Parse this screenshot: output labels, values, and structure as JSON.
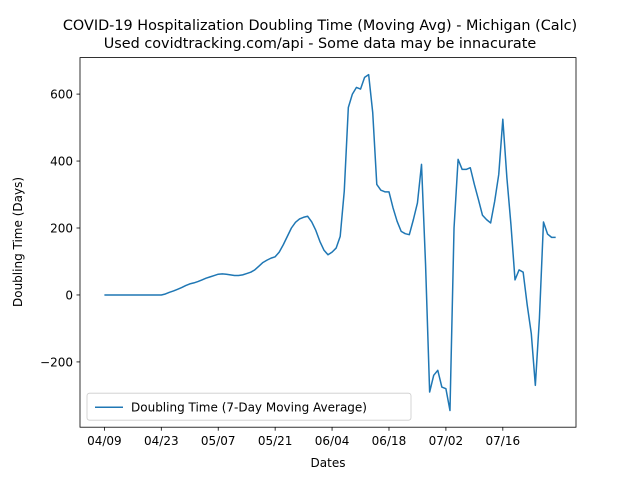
{
  "chart_data": {
    "type": "line",
    "title": "COVID-19 Hospitalization Doubling Time (Moving Avg) - Michigan (Calc)",
    "subtitle": "Used covidtracking.com/api - Some data may be innacurate",
    "x_label": "Dates",
    "y_label": "Doubling Time (Days)",
    "x": [
      "04/09",
      "04/10",
      "04/11",
      "04/12",
      "04/13",
      "04/14",
      "04/15",
      "04/16",
      "04/17",
      "04/18",
      "04/19",
      "04/20",
      "04/21",
      "04/22",
      "04/23",
      "04/24",
      "04/25",
      "04/26",
      "04/27",
      "04/28",
      "04/29",
      "04/30",
      "05/01",
      "05/02",
      "05/03",
      "05/04",
      "05/05",
      "05/06",
      "05/07",
      "05/08",
      "05/09",
      "05/10",
      "05/11",
      "05/12",
      "05/13",
      "05/14",
      "05/15",
      "05/16",
      "05/17",
      "05/18",
      "05/19",
      "05/20",
      "05/21",
      "05/22",
      "05/23",
      "05/24",
      "05/25",
      "05/26",
      "05/27",
      "05/28",
      "05/29",
      "05/30",
      "05/31",
      "06/01",
      "06/02",
      "06/03",
      "06/04",
      "06/05",
      "06/06",
      "06/07",
      "06/08",
      "06/09",
      "06/10",
      "06/11",
      "06/12",
      "06/13",
      "06/14",
      "06/15",
      "06/16",
      "06/17",
      "06/18",
      "06/19",
      "06/20",
      "06/21",
      "06/22",
      "06/23",
      "06/24",
      "06/25",
      "06/26",
      "06/27",
      "06/28",
      "06/29",
      "06/30",
      "07/01",
      "07/02",
      "07/03",
      "07/04",
      "07/05",
      "07/06",
      "07/07",
      "07/08",
      "07/09",
      "07/10",
      "07/11",
      "07/12",
      "07/13",
      "07/14",
      "07/15",
      "07/16",
      "07/17",
      "07/18",
      "07/19",
      "07/20",
      "07/21",
      "07/22",
      "07/23",
      "07/24",
      "07/25",
      "07/26",
      "07/27",
      "07/28",
      "07/29"
    ],
    "series": [
      {
        "name": "Doubling Time (7-Day Moving Average)",
        "color": "#1f77b4",
        "values": [
          0,
          0,
          0,
          0,
          0,
          0,
          0,
          0,
          0,
          0,
          0,
          0,
          0,
          0,
          0,
          3,
          8,
          12,
          17,
          22,
          28,
          33,
          36,
          40,
          45,
          50,
          54,
          58,
          62,
          63,
          62,
          60,
          58,
          58,
          60,
          64,
          68,
          75,
          86,
          97,
          104,
          110,
          114,
          128,
          150,
          175,
          200,
          217,
          227,
          232,
          235,
          218,
          193,
          160,
          134,
          120,
          128,
          140,
          175,
          310,
          560,
          600,
          620,
          615,
          650,
          658,
          545,
          330,
          313,
          308,
          308,
          260,
          220,
          190,
          183,
          180,
          225,
          275,
          390,
          90,
          -290,
          -240,
          -225,
          -275,
          -280,
          -345,
          200,
          405,
          375,
          375,
          380,
          330,
          285,
          238,
          225,
          215,
          280,
          360,
          525,
          350,
          210,
          45,
          75,
          68,
          -30,
          -115,
          -270,
          -70,
          218,
          182,
          172,
          172
        ]
      }
    ],
    "xlim": [
      "04/03",
      "08/03"
    ],
    "xticks": [
      "04/09",
      "04/23",
      "05/07",
      "05/21",
      "06/04",
      "06/18",
      "07/02",
      "07/16"
    ],
    "ylim": [
      -395,
      709
    ],
    "yticks": [
      {
        "value": -200,
        "label": "−200"
      },
      0,
      200,
      400,
      600
    ],
    "legend": "lower left",
    "grid": false
  }
}
